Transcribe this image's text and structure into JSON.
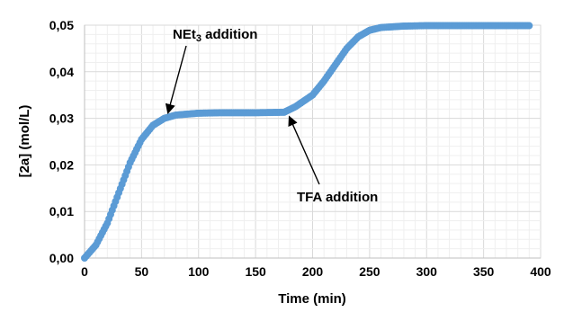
{
  "chart_data": {
    "type": "scatter",
    "title": "",
    "xlabel": "Time (min)",
    "ylabel": "[2a] (mol/L)",
    "xlim": [
      0,
      400
    ],
    "ylim": [
      0,
      0.05
    ],
    "x_ticks": [
      "0",
      "50",
      "100",
      "150",
      "200",
      "250",
      "300",
      "350",
      "400"
    ],
    "y_ticks": [
      "0,00",
      "0,01",
      "0,02",
      "0,03",
      "0,04",
      "0,05"
    ],
    "grid": true,
    "legend": "none",
    "series": [
      {
        "color": "#5b9bd5",
        "points": [
          [
            0,
            0.0
          ],
          [
            10,
            0.0028
          ],
          [
            20,
            0.0075
          ],
          [
            30,
            0.014
          ],
          [
            40,
            0.0205
          ],
          [
            50,
            0.0255
          ],
          [
            60,
            0.0285
          ],
          [
            70,
            0.03
          ],
          [
            80,
            0.0307
          ],
          [
            100,
            0.0311
          ],
          [
            120,
            0.0312
          ],
          [
            150,
            0.0312
          ],
          [
            175,
            0.0313
          ],
          [
            185,
            0.0325
          ],
          [
            200,
            0.035
          ],
          [
            210,
            0.038
          ],
          [
            220,
            0.0415
          ],
          [
            230,
            0.045
          ],
          [
            240,
            0.0475
          ],
          [
            250,
            0.0489
          ],
          [
            260,
            0.0495
          ],
          [
            280,
            0.0498
          ],
          [
            300,
            0.0499
          ],
          [
            350,
            0.0499
          ],
          [
            390,
            0.0499
          ]
        ]
      }
    ],
    "annotations": [
      {
        "id": "net3",
        "text_main": "NEt",
        "text_sub": "3",
        "text_rest": " addition",
        "point": [
          70,
          0.03
        ]
      },
      {
        "id": "tfa",
        "text": "TFA addition",
        "point": [
          178,
          0.0315
        ]
      }
    ]
  }
}
